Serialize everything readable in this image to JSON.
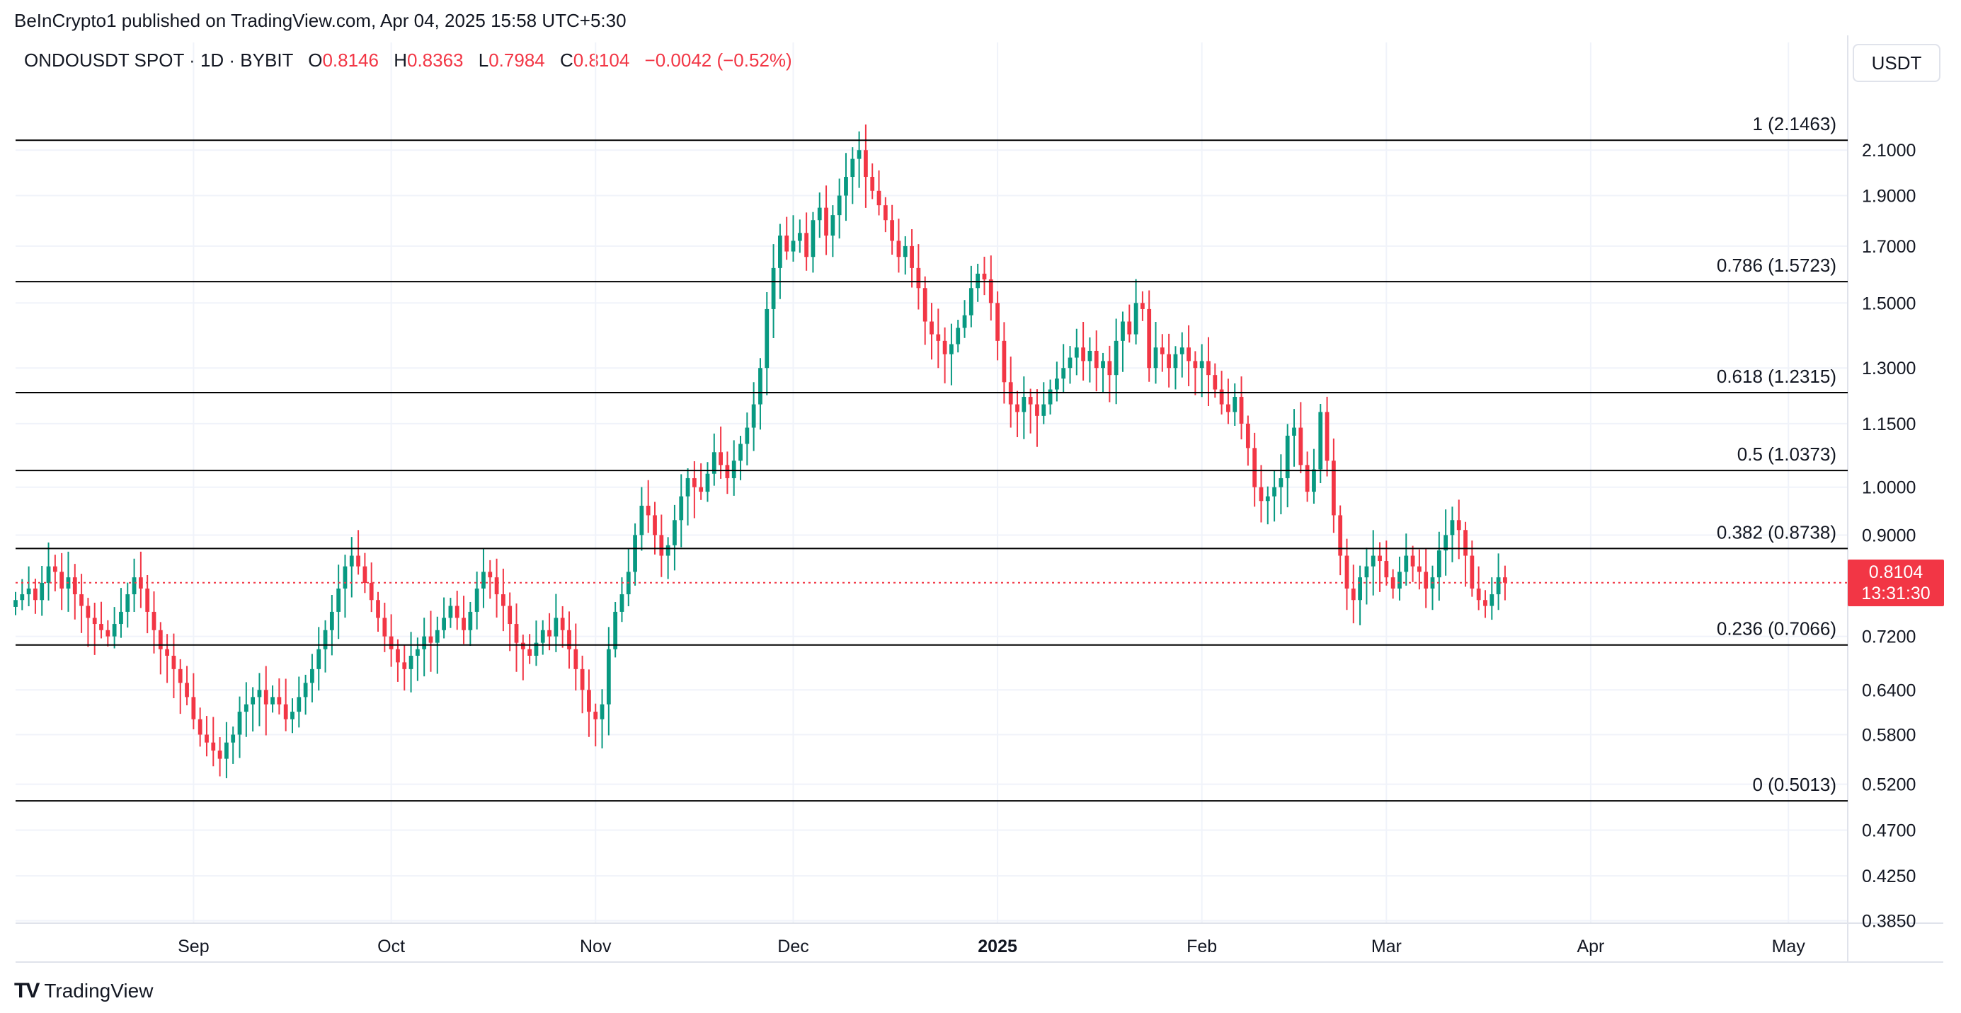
{
  "header": {
    "published": "BeInCrypto1 published on TradingView.com, Apr 04, 2025 15:58 UTC+5:30"
  },
  "legend": {
    "symbol": "ONDOUSDT SPOT · 1D · BYBIT",
    "open_label": "O",
    "open": "0.8146",
    "high_label": "H",
    "high": "0.8363",
    "low_label": "L",
    "low": "0.7984",
    "close_label": "C",
    "close": "0.8104",
    "change": "−0.0042 (−0.52%)"
  },
  "currency": "USDT",
  "last_price": {
    "value": "0.8104",
    "countdown": "13:31:30"
  },
  "brand": {
    "name": "TradingView",
    "logo": "TV"
  },
  "colors": {
    "up": "#089981",
    "down": "#f23645",
    "grid": "#f0f3fa",
    "fib": "#000000"
  },
  "chart_data": {
    "type": "candlestick",
    "scale": "log",
    "x_axis": {
      "labels": [
        {
          "text": "Sep",
          "date": "2024-09-01"
        },
        {
          "text": "Oct",
          "date": "2024-10-01"
        },
        {
          "text": "Nov",
          "date": "2024-11-01"
        },
        {
          "text": "Dec",
          "date": "2024-12-01"
        },
        {
          "text": "2025",
          "date": "2025-01-01",
          "bold": true
        },
        {
          "text": "Feb",
          "date": "2025-02-01"
        },
        {
          "text": "Mar",
          "date": "2025-03-01"
        },
        {
          "text": "Apr",
          "date": "2025-04-01"
        },
        {
          "text": "May",
          "date": "2025-05-01"
        }
      ],
      "range": [
        "2024-08-05",
        "2025-05-10"
      ]
    },
    "y_axis": {
      "ticks": [
        "2.1000",
        "1.9000",
        "1.7000",
        "1.5000",
        "1.3000",
        "1.1500",
        "1.0000",
        "0.9000",
        "0.7200",
        "0.6400",
        "0.5800",
        "0.5200",
        "0.4700",
        "0.4250",
        "0.3850"
      ],
      "range": [
        0.383,
        2.35
      ]
    },
    "fib_levels": [
      {
        "label": "1 (2.1463)",
        "value": 2.1463
      },
      {
        "label": "0.786 (1.5723)",
        "value": 1.5723
      },
      {
        "label": "0.618 (1.2315)",
        "value": 1.2315
      },
      {
        "label": "0.5 (1.0373)",
        "value": 1.0373
      },
      {
        "label": "0.382 (0.8738)",
        "value": 0.8738
      },
      {
        "label": "0.236 (0.7066)",
        "value": 0.7066
      },
      {
        "label": "0 (0.5013)",
        "value": 0.5013
      }
    ],
    "last_price": 0.8104,
    "start_date": "2024-08-05",
    "closes": [
      0.78,
      0.79,
      0.8,
      0.78,
      0.81,
      0.84,
      0.83,
      0.8,
      0.82,
      0.79,
      0.77,
      0.75,
      0.74,
      0.73,
      0.72,
      0.74,
      0.76,
      0.79,
      0.82,
      0.8,
      0.76,
      0.73,
      0.7,
      0.69,
      0.67,
      0.65,
      0.63,
      0.6,
      0.58,
      0.57,
      0.56,
      0.55,
      0.57,
      0.58,
      0.61,
      0.62,
      0.63,
      0.64,
      0.62,
      0.63,
      0.62,
      0.6,
      0.61,
      0.63,
      0.65,
      0.67,
      0.7,
      0.73,
      0.76,
      0.8,
      0.84,
      0.86,
      0.84,
      0.81,
      0.78,
      0.75,
      0.72,
      0.7,
      0.68,
      0.67,
      0.69,
      0.7,
      0.72,
      0.71,
      0.73,
      0.75,
      0.77,
      0.75,
      0.73,
      0.76,
      0.8,
      0.83,
      0.82,
      0.79,
      0.77,
      0.74,
      0.71,
      0.7,
      0.69,
      0.71,
      0.73,
      0.72,
      0.75,
      0.73,
      0.7,
      0.67,
      0.64,
      0.61,
      0.6,
      0.62,
      0.7,
      0.76,
      0.79,
      0.83,
      0.9,
      0.96,
      0.94,
      0.9,
      0.86,
      0.88,
      0.93,
      0.98,
      1.02,
      1.0,
      0.99,
      1.03,
      1.08,
      1.05,
      1.02,
      1.06,
      1.1,
      1.14,
      1.2,
      1.3,
      1.48,
      1.62,
      1.74,
      1.68,
      1.72,
      1.75,
      1.66,
      1.8,
      1.85,
      1.74,
      1.82,
      1.9,
      1.98,
      2.06,
      2.1,
      1.98,
      1.92,
      1.86,
      1.8,
      1.72,
      1.66,
      1.7,
      1.62,
      1.55,
      1.44,
      1.4,
      1.38,
      1.34,
      1.37,
      1.42,
      1.46,
      1.55,
      1.6,
      1.58,
      1.5,
      1.38,
      1.26,
      1.2,
      1.18,
      1.22,
      1.2,
      1.17,
      1.2,
      1.24,
      1.27,
      1.3,
      1.33,
      1.36,
      1.32,
      1.35,
      1.3,
      1.32,
      1.28,
      1.38,
      1.44,
      1.4,
      1.5,
      1.48,
      1.3,
      1.36,
      1.34,
      1.3,
      1.34,
      1.36,
      1.32,
      1.3,
      1.32,
      1.28,
      1.24,
      1.2,
      1.18,
      1.22,
      1.15,
      1.09,
      1.0,
      0.97,
      0.98,
      1.0,
      1.02,
      1.12,
      1.14,
      1.05,
      0.99,
      1.04,
      1.18,
      1.06,
      0.94,
      0.86,
      0.8,
      0.78,
      0.82,
      0.84,
      0.86,
      0.85,
      0.82,
      0.8,
      0.83,
      0.86,
      0.84,
      0.83,
      0.8,
      0.82,
      0.87,
      0.9,
      0.93,
      0.91,
      0.86,
      0.8,
      0.78,
      0.77,
      0.79,
      0.82,
      0.8104
    ]
  }
}
